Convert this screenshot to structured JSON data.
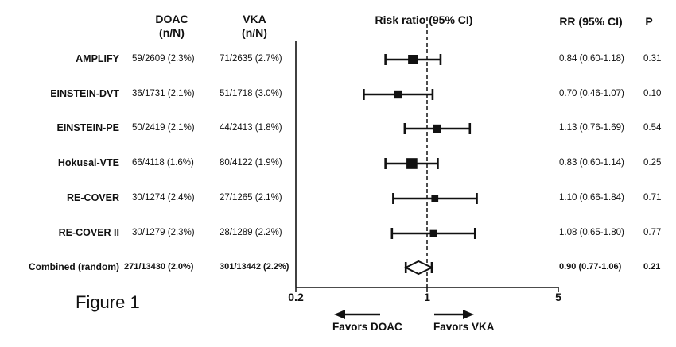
{
  "headers": {
    "dvoac": "DOAC",
    "dvoac_sub": "(n/N)",
    "vka": "VKA",
    "vka_sub": "(n/N)",
    "risk": "Risk ratio (95% CI)",
    "rr": "RR (95% CI)",
    "p": "P"
  },
  "figure_label": "Figure 1",
  "axis": {
    "ticks": [
      "0.2",
      "1",
      "5"
    ],
    "favors_left": "Favors DOAC",
    "favors_right": "Favors VKA"
  },
  "chart_data": {
    "type": "forest",
    "scale": "log",
    "xlim": [
      0.2,
      5
    ],
    "reference": 1,
    "studies": [
      {
        "name": "AMPLIFY",
        "doac": "59/2609 (2.3%)",
        "vka": "71/2635 (2.7%)",
        "rr": 0.84,
        "lo": 0.6,
        "hi": 1.18,
        "rr_text": "0.84 (0.60-1.18)",
        "p": "0.31",
        "weight": 1.0
      },
      {
        "name": "EINSTEIN-DVT",
        "doac": "36/1731 (2.1%)",
        "vka": "51/1718 (3.0%)",
        "rr": 0.7,
        "lo": 0.46,
        "hi": 1.07,
        "rr_text": "0.70 (0.46-1.07)",
        "p": "0.10",
        "weight": 0.85
      },
      {
        "name": "EINSTEIN-PE",
        "doac": "50/2419 (2.1%)",
        "vka": "44/2413 (1.8%)",
        "rr": 1.13,
        "lo": 0.76,
        "hi": 1.69,
        "rr_text": "1.13 (0.76-1.69)",
        "p": "0.54",
        "weight": 0.85
      },
      {
        "name": "Hokusai-VTE",
        "doac": "66/4118 (1.6%)",
        "vka": "80/4122 (1.9%)",
        "rr": 0.83,
        "lo": 0.6,
        "hi": 1.14,
        "rr_text": "0.83 (0.60-1.14)",
        "p": "0.25",
        "weight": 1.15
      },
      {
        "name": "RE-COVER",
        "doac": "30/1274 (2.4%)",
        "vka": "27/1265 (2.1%)",
        "rr": 1.1,
        "lo": 0.66,
        "hi": 1.84,
        "rr_text": "1.10 (0.66-1.84)",
        "p": "0.71",
        "weight": 0.7
      },
      {
        "name": "RE-COVER II",
        "doac": "30/1279 (2.3%)",
        "vka": "28/1289 (2.2%)",
        "rr": 1.08,
        "lo": 0.65,
        "hi": 1.8,
        "rr_text": "1.08 (0.65-1.80)",
        "p": "0.77",
        "weight": 0.7
      }
    ],
    "combined": {
      "name": "Combined (random)",
      "doac": "271/13430 (2.0%)",
      "vka": "301/13442 (2.2%)",
      "rr": 0.9,
      "lo": 0.77,
      "hi": 1.06,
      "rr_text": "0.90 (0.77-1.06)",
      "p": "0.21"
    }
  }
}
